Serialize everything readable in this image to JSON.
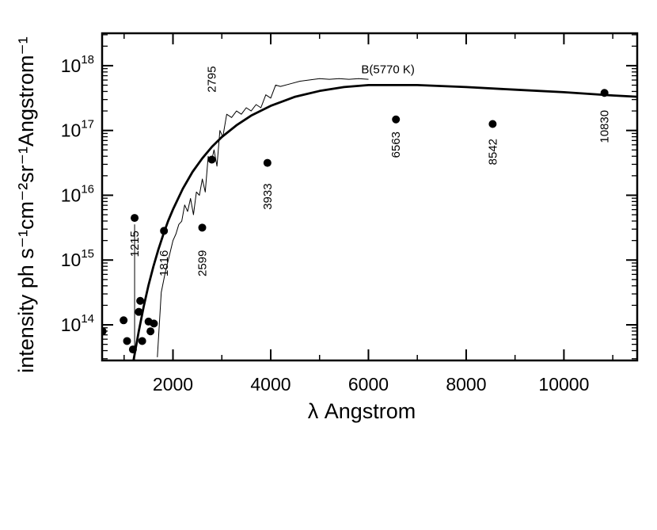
{
  "chart_data": {
    "type": "scatter",
    "xlabel": "λ Angstrom",
    "ylabel": "intensity ph s⁻¹cm⁻²sr⁻¹Angstrom⁻¹",
    "xlim": [
      550,
      11500
    ],
    "ylim_log10": [
      13.45,
      18.5
    ],
    "yscale": "log",
    "grid": false,
    "x_ticks": [
      2000,
      4000,
      6000,
      8000,
      10000
    ],
    "x_tick_labels": [
      "2000",
      "4000",
      "6000",
      "8000",
      "10000"
    ],
    "y_ticks_log10": [
      14,
      15,
      16,
      17,
      18
    ],
    "y_tick_labels": [
      {
        "base": "10",
        "exp": "14"
      },
      {
        "base": "10",
        "exp": "15"
      },
      {
        "base": "10",
        "exp": "16"
      },
      {
        "base": "10",
        "exp": "17"
      },
      {
        "base": "10",
        "exp": "18"
      }
    ],
    "series": [
      {
        "name": "B(5770 K)",
        "kind": "blackbody-curve",
        "temperature_K": 5770,
        "x": [
          1100,
          1200,
          1300,
          1400,
          1500,
          1600,
          1700,
          1800,
          1900,
          2000,
          2200,
          2400,
          2600,
          2800,
          3000,
          3300,
          3600,
          4000,
          4500,
          5000,
          5500,
          6000,
          6500,
          7000,
          8000,
          9000,
          10000,
          11000,
          11500
        ],
        "log10_y": [
          13.0,
          13.48,
          13.9,
          14.28,
          14.61,
          14.9,
          15.16,
          15.39,
          15.6,
          15.78,
          16.1,
          16.36,
          16.57,
          16.75,
          16.9,
          17.08,
          17.23,
          17.38,
          17.52,
          17.61,
          17.67,
          17.7,
          17.7,
          17.7,
          17.67,
          17.63,
          17.59,
          17.54,
          17.52
        ],
        "label_at": {
          "x": 6400,
          "log10_y": 17.88
        }
      },
      {
        "name": "",
        "kind": "observed-spectrum",
        "x": [
          1680,
          1760,
          1840,
          1920,
          2000,
          2060,
          2120,
          2180,
          2240,
          2300,
          2360,
          2420,
          2480,
          2540,
          2600,
          2660,
          2720,
          2780,
          2840,
          2900,
          2960,
          3020,
          3100,
          3200,
          3300,
          3400,
          3500,
          3600,
          3700,
          3800,
          3900,
          4000,
          4100,
          4200,
          4400,
          4600,
          4800,
          5000,
          5200,
          5400,
          5600,
          5800,
          6000
        ],
        "log10_y": [
          13.5,
          14.5,
          14.8,
          15.05,
          15.3,
          15.4,
          15.55,
          15.6,
          15.85,
          15.75,
          15.95,
          15.7,
          16.05,
          16.0,
          16.25,
          16.05,
          16.6,
          16.5,
          16.7,
          16.45,
          17.0,
          16.9,
          17.25,
          17.2,
          17.3,
          17.25,
          17.35,
          17.3,
          17.4,
          17.35,
          17.55,
          17.5,
          17.7,
          17.68,
          17.72,
          17.76,
          17.78,
          17.8,
          17.79,
          17.8,
          17.79,
          17.8,
          17.79
        ]
      },
      {
        "name": "",
        "kind": "line-intensities",
        "x": [
          560,
          990,
          1060,
          1180,
          1215,
          1300,
          1330,
          1370,
          1500,
          1540,
          1610,
          1816,
          2599,
          2795,
          3933,
          6563,
          8542,
          10830
        ],
        "log10_y": [
          13.9,
          14.07,
          13.75,
          13.62,
          15.65,
          14.2,
          14.37,
          13.75,
          14.05,
          13.9,
          14.02,
          15.45,
          15.5,
          16.55,
          16.5,
          17.17,
          17.1,
          17.58
        ]
      }
    ],
    "annotations": [
      {
        "text": "1215",
        "x": 1215,
        "log10_y": 15.25,
        "rotate": -90
      },
      {
        "text": "1816",
        "x": 1816,
        "log10_y": 14.95,
        "rotate": -90
      },
      {
        "text": "2599",
        "x": 2599,
        "log10_y": 14.95,
        "rotate": -90
      },
      {
        "text": "2795",
        "x": 2795,
        "log10_y": 17.79,
        "rotate": -90
      },
      {
        "text": "3933",
        "x": 3933,
        "log10_y": 15.98,
        "rotate": -90
      },
      {
        "text": "6563",
        "x": 6563,
        "log10_y": 16.78,
        "rotate": -90
      },
      {
        "text": "8542",
        "x": 8542,
        "log10_y": 16.67,
        "rotate": -90
      },
      {
        "text": "10830",
        "x": 10830,
        "log10_y": 17.06,
        "rotate": -90
      }
    ],
    "annotation_lines": [
      {
        "x": 1215,
        "log10_y": [
          13.45,
          15.55
        ]
      }
    ]
  }
}
